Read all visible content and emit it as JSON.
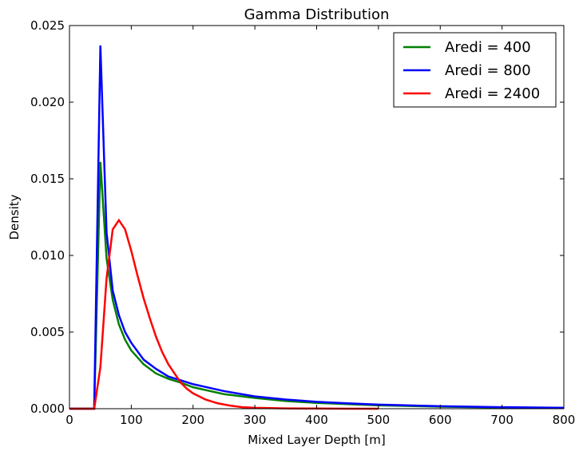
{
  "chart_data": {
    "type": "line",
    "title": "Gamma Distribution",
    "xlabel": "Mixed Layer Depth [m]",
    "ylabel": "Density",
    "xlim": [
      0,
      800
    ],
    "ylim": [
      0,
      0.025
    ],
    "xticks": [
      0,
      100,
      200,
      300,
      400,
      500,
      600,
      700,
      800
    ],
    "xtick_labels": [
      "0",
      "100",
      "200",
      "300",
      "400",
      "500",
      "600",
      "700",
      "800"
    ],
    "yticks": [
      0,
      0.005,
      0.01,
      0.015,
      0.02,
      0.025
    ],
    "ytick_labels": [
      "0.000",
      "0.005",
      "0.010",
      "0.015",
      "0.020",
      "0.025"
    ],
    "grid": false,
    "legend": "top-right",
    "series": [
      {
        "name": "Aredi = 400",
        "color": "#008000",
        "x": [
          0,
          10,
          20,
          30,
          40,
          50,
          60,
          70,
          80,
          90,
          100,
          120,
          140,
          160,
          180,
          200,
          250,
          300,
          350,
          400,
          450,
          500,
          600,
          700,
          800
        ],
        "y": [
          0,
          0,
          0,
          0,
          0,
          0.0161,
          0.0098,
          0.0071,
          0.0055,
          0.0045,
          0.0038,
          0.0029,
          0.0023,
          0.00195,
          0.0017,
          0.0014,
          0.00095,
          0.0007,
          0.0005,
          0.00038,
          0.0003,
          0.00022,
          0.00013,
          8e-05,
          5e-05
        ]
      },
      {
        "name": "Aredi = 800",
        "color": "#0000ff",
        "x": [
          0,
          10,
          20,
          30,
          40,
          50,
          60,
          70,
          80,
          90,
          100,
          120,
          140,
          160,
          180,
          200,
          250,
          300,
          350,
          400,
          450,
          500,
          600,
          700,
          800
        ],
        "y": [
          0,
          0,
          0,
          0,
          0,
          0.0237,
          0.0115,
          0.0077,
          0.0061,
          0.005,
          0.0043,
          0.0032,
          0.0026,
          0.0021,
          0.00185,
          0.0016,
          0.00115,
          0.0008,
          0.0006,
          0.00045,
          0.00035,
          0.00027,
          0.00016,
          0.0001,
          6e-05
        ]
      },
      {
        "name": "Aredi = 2400",
        "color": "#ff0000",
        "x": [
          0,
          10,
          20,
          30,
          40,
          50,
          60,
          70,
          80,
          90,
          100,
          110,
          120,
          130,
          140,
          150,
          160,
          170,
          180,
          190,
          200,
          220,
          240,
          260,
          280,
          300,
          350,
          400,
          450,
          500
        ],
        "y": [
          0,
          0,
          0,
          0,
          0,
          0.0027,
          0.0085,
          0.0117,
          0.0123,
          0.0117,
          0.0103,
          0.0087,
          0.0072,
          0.0059,
          0.0047,
          0.0037,
          0.0029,
          0.0023,
          0.0017,
          0.0013,
          0.001,
          0.0006,
          0.00035,
          0.0002,
          0.0001,
          6e-05,
          2e-05,
          1e-05,
          0,
          0
        ]
      }
    ]
  }
}
